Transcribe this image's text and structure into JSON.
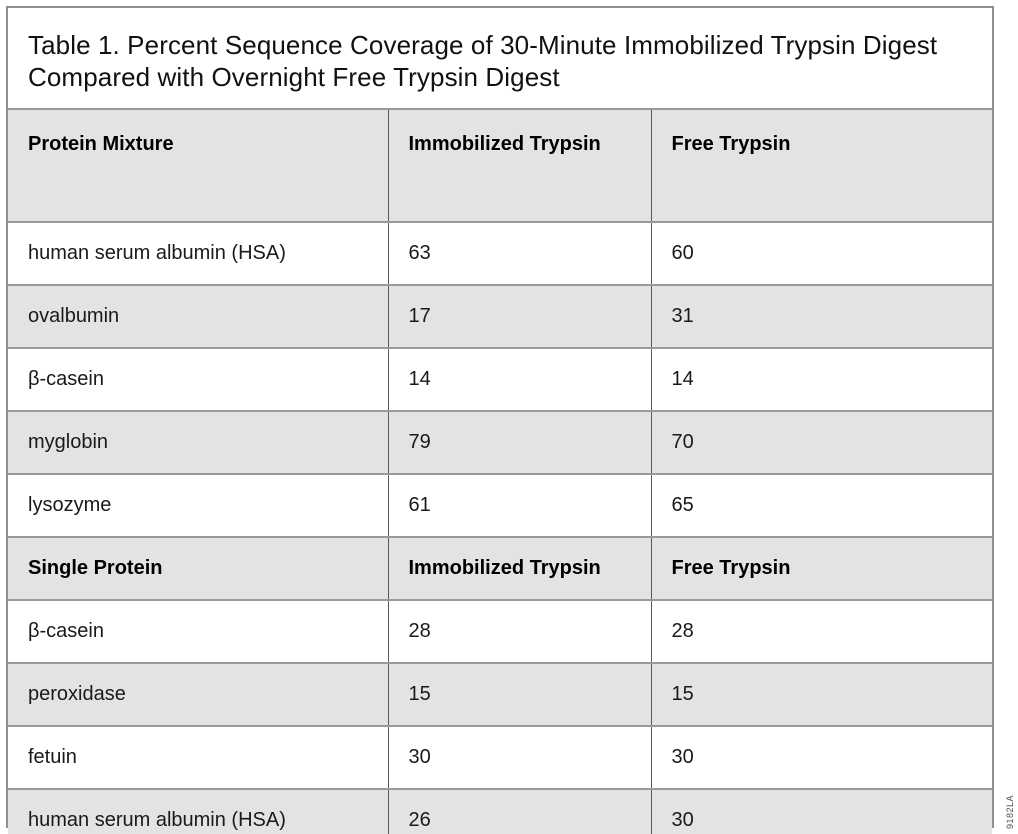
{
  "title": "Table 1. Percent Sequence Coverage of 30-Minute Immobilized Trypsin Digest Compared with Overnight Free Trypsin Digest",
  "figure_code": "9182LA",
  "colors": {
    "row_shade": "#e3e3e3",
    "frame_border": "#8f8f8f",
    "row_divider": "#9a9a9a",
    "column_divider": "#595959",
    "text": "#1a1a1a"
  },
  "table": {
    "sections": [
      {
        "header": [
          "Protein Mixture",
          "Immobilized Trypsin",
          "Free Trypsin"
        ],
        "rows": [
          [
            "human serum albumin (HSA)",
            "63",
            "60"
          ],
          [
            "ovalbumin",
            "17",
            "31"
          ],
          [
            "β-casein",
            "14",
            "14"
          ],
          [
            "myglobin",
            "79",
            "70"
          ],
          [
            "lysozyme",
            "61",
            "65"
          ]
        ]
      },
      {
        "header": [
          "Single Protein",
          "Immobilized Trypsin",
          "Free Trypsin"
        ],
        "rows": [
          [
            "β-casein",
            "28",
            "28"
          ],
          [
            "peroxidase",
            "15",
            "15"
          ],
          [
            "fetuin",
            "30",
            "30"
          ],
          [
            "human serum albumin (HSA)",
            "26",
            "30"
          ]
        ]
      }
    ]
  }
}
